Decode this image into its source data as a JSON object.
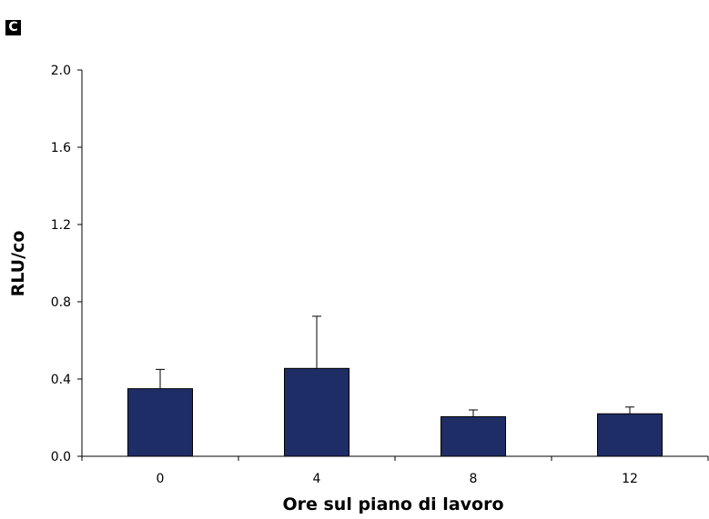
{
  "panel_label": "C",
  "chart_data": {
    "type": "bar",
    "title": "",
    "xlabel": "Ore sul piano di lavoro",
    "ylabel": "RLU/co",
    "categories": [
      "0",
      "4",
      "8",
      "12"
    ],
    "values": [
      0.35,
      0.455,
      0.205,
      0.22
    ],
    "error_bars": [
      0.1,
      0.27,
      0.035,
      0.035
    ],
    "ylim": [
      0,
      2.0
    ],
    "yticks": [
      "0.0",
      "0.4",
      "0.8",
      "1.2",
      "1.6",
      "2.0"
    ],
    "bar_color": "#1f2d66",
    "grid": false,
    "legend": "none"
  }
}
